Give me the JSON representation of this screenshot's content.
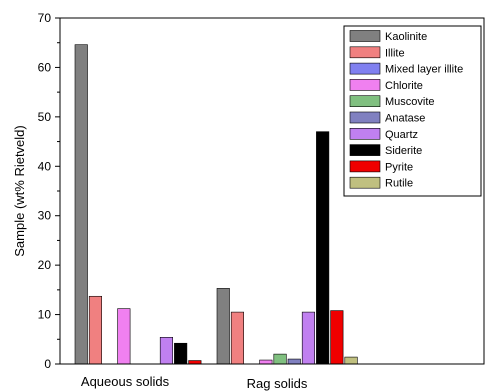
{
  "chart_data": {
    "type": "bar",
    "title": "",
    "xlabel": "",
    "ylabel": "Sample (wt% Rietveld)",
    "ylim": [
      0,
      70
    ],
    "yticks": [
      0,
      10,
      20,
      30,
      40,
      50,
      60,
      70
    ],
    "grid": false,
    "legend_position": "top-right",
    "categories": [
      "Aqueous solids",
      "Rag solids"
    ],
    "series": [
      {
        "name": "Kaolinite",
        "color": "#808080",
        "values": [
          64.6,
          15.3
        ]
      },
      {
        "name": "Illite",
        "color": "#f08080",
        "values": [
          13.7,
          10.5
        ]
      },
      {
        "name": "Mixed layer illite",
        "color": "#8080f0",
        "values": [
          0,
          0
        ]
      },
      {
        "name": "Chlorite",
        "color": "#f080f0",
        "values": [
          11.2,
          0.8
        ]
      },
      {
        "name": "Muscovite",
        "color": "#80c080",
        "values": [
          0,
          2.0
        ]
      },
      {
        "name": "Anatase",
        "color": "#8080c0",
        "values": [
          0,
          1.0
        ]
      },
      {
        "name": "Quartz",
        "color": "#c080f0",
        "values": [
          5.4,
          10.5
        ]
      },
      {
        "name": "Siderite",
        "color": "#000000",
        "values": [
          4.2,
          47.0
        ]
      },
      {
        "name": "Pyrite",
        "color": "#f00000",
        "values": [
          0.7,
          10.8
        ]
      },
      {
        "name": "Rutile",
        "color": "#c0c080",
        "values": [
          0,
          1.4
        ]
      }
    ]
  }
}
